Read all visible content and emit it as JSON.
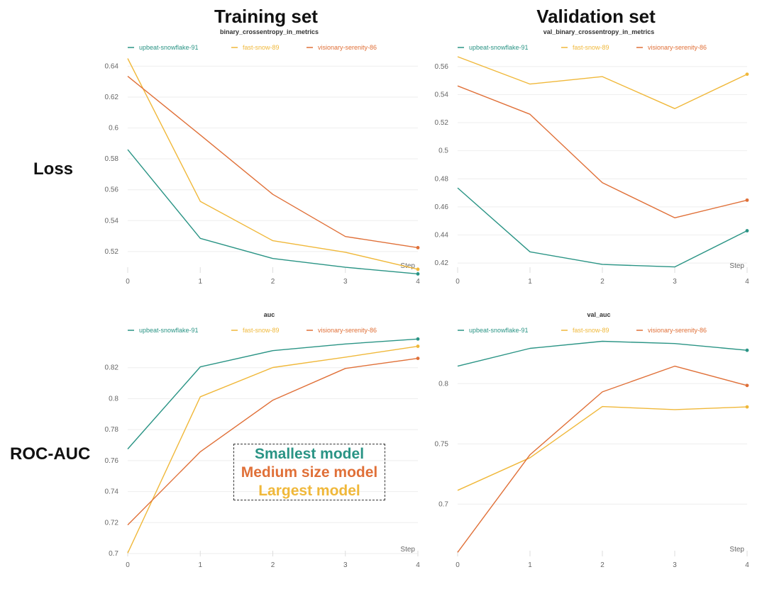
{
  "column_titles": {
    "left": "Training set",
    "right": "Validation set"
  },
  "row_labels": {
    "top": "Loss",
    "bottom": "ROC-AUC"
  },
  "annotation": {
    "small": "Smallest model",
    "medium": "Medium size model",
    "large": "Largest model",
    "colors": {
      "small": "#2a9485",
      "medium": "#e07038",
      "large": "#f0b83a"
    }
  },
  "chart_data": [
    {
      "type": "line",
      "title": "binary_crossentropy_in_metrics",
      "xlabel": "Step",
      "x": [
        0,
        1,
        2,
        3,
        4
      ],
      "xticks": [
        "0",
        "1",
        "2",
        "3",
        "4"
      ],
      "ylim": [
        0.508,
        0.648
      ],
      "yticks": [
        0.52,
        0.54,
        0.56,
        0.58,
        0.6,
        0.62,
        0.64
      ],
      "ytick_labels": [
        "0.52",
        "0.54",
        "0.56",
        "0.58",
        "0.6",
        "0.62",
        "0.64"
      ],
      "legend": "top",
      "grid": true,
      "series": [
        {
          "name": "upbeat-snowflake-91",
          "color": "#2a9485",
          "values": [
            0.586,
            0.5285,
            0.5155,
            0.5098,
            0.5055
          ]
        },
        {
          "name": "fast-snow-89",
          "color": "#f0b83a",
          "values": [
            0.645,
            0.5525,
            0.527,
            0.5195,
            0.5085
          ]
        },
        {
          "name": "visionary-serenity-86",
          "color": "#e07038",
          "values": [
            0.6335,
            0.5955,
            0.557,
            0.5297,
            0.5225
          ]
        }
      ]
    },
    {
      "type": "line",
      "title": "val_binary_crossentropy_in_metrics",
      "xlabel": "Step",
      "x": [
        0,
        1,
        2,
        3,
        4
      ],
      "xticks": [
        "0",
        "1",
        "2",
        "3",
        "4"
      ],
      "ylim": [
        0.415,
        0.569
      ],
      "yticks": [
        0.42,
        0.44,
        0.46,
        0.48,
        0.5,
        0.52,
        0.54,
        0.56
      ],
      "ytick_labels": [
        "0.42",
        "0.44",
        "0.46",
        "0.48",
        "0.5",
        "0.52",
        "0.54",
        "0.56"
      ],
      "legend": "top",
      "grid": true,
      "series": [
        {
          "name": "upbeat-snowflake-91",
          "color": "#2a9485",
          "values": [
            0.4735,
            0.428,
            0.419,
            0.4172,
            0.443
          ]
        },
        {
          "name": "fast-snow-89",
          "color": "#f0b83a",
          "values": [
            0.567,
            0.5475,
            0.5528,
            0.53,
            0.5545
          ]
        },
        {
          "name": "visionary-serenity-86",
          "color": "#e07038",
          "values": [
            0.5462,
            0.526,
            0.4772,
            0.4522,
            0.4648
          ]
        }
      ]
    },
    {
      "type": "line",
      "title": "auc",
      "xlabel": "Step",
      "x": [
        0,
        1,
        2,
        3,
        4
      ],
      "xticks": [
        "0",
        "1",
        "2",
        "3",
        "4"
      ],
      "ylim": [
        0.7,
        0.84
      ],
      "yticks": [
        0.7,
        0.72,
        0.74,
        0.76,
        0.78,
        0.8,
        0.82
      ],
      "ytick_labels": [
        "0.7",
        "0.72",
        "0.74",
        "0.76",
        "0.78",
        "0.8",
        "0.82"
      ],
      "legend": "top",
      "grid": true,
      "series": [
        {
          "name": "upbeat-snowflake-91",
          "color": "#2a9485",
          "values": [
            0.7675,
            0.8205,
            0.831,
            0.8353,
            0.8385
          ]
        },
        {
          "name": "fast-snow-89",
          "color": "#f0b83a",
          "values": [
            0.7003,
            0.8012,
            0.8201,
            0.8268,
            0.8338
          ]
        },
        {
          "name": "visionary-serenity-86",
          "color": "#e07038",
          "values": [
            0.7185,
            0.7657,
            0.799,
            0.8195,
            0.826
          ]
        }
      ]
    },
    {
      "type": "line",
      "title": "val_auc",
      "xlabel": "Step",
      "x": [
        0,
        1,
        2,
        3,
        4
      ],
      "xticks": [
        "0",
        "1",
        "2",
        "3",
        "4"
      ],
      "ylim": [
        0.659,
        0.839
      ],
      "yticks": [
        0.7,
        0.75,
        0.8
      ],
      "ytick_labels": [
        "0.7",
        "0.75",
        "0.8"
      ],
      "legend": "top",
      "grid": true,
      "series": [
        {
          "name": "upbeat-snowflake-91",
          "color": "#2a9485",
          "values": [
            0.8145,
            0.8293,
            0.8352,
            0.8333,
            0.8277
          ]
        },
        {
          "name": "fast-snow-89",
          "color": "#f0b83a",
          "values": [
            0.7115,
            0.7385,
            0.781,
            0.7785,
            0.7807
          ]
        },
        {
          "name": "visionary-serenity-86",
          "color": "#e07038",
          "values": [
            0.66,
            0.741,
            0.7932,
            0.8145,
            0.7985
          ]
        }
      ]
    }
  ]
}
